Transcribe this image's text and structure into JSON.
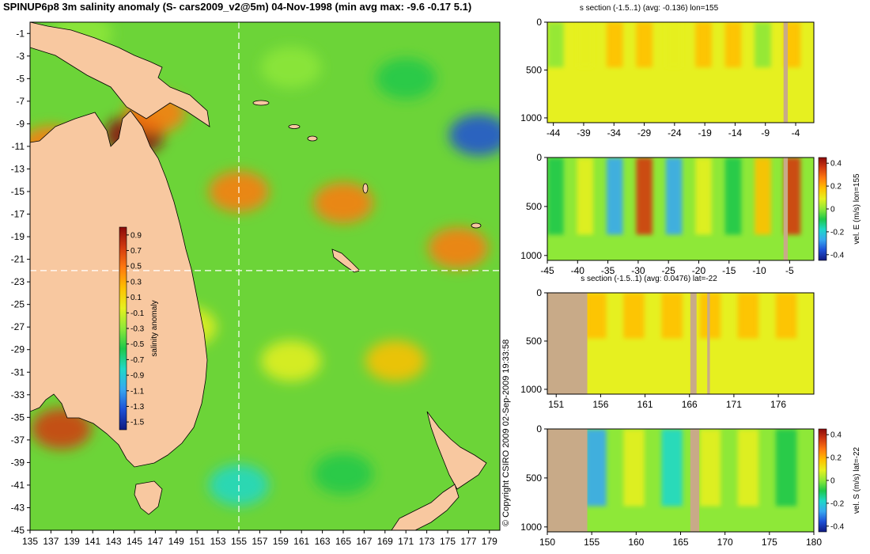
{
  "main_title": "SPINUP6p8 3m salinity anomaly (S- cars2009_v2@5m) 04-Nov-1998 (min avg max: -9.6 -0.17 5.1)",
  "copyright": "© Copyright CSIRO 2009   02-Sep-2009 19:33:58",
  "colors": {
    "land": "#f8c8a0",
    "section_land": "#c8aa88",
    "scale": [
      "#101a80",
      "#1e50d6",
      "#38a8f0",
      "#20d8c8",
      "#1ec84a",
      "#8ee838",
      "#e6f020",
      "#ffc000",
      "#ff7a10",
      "#d23a10",
      "#8a0a0a"
    ]
  },
  "chart_data": [
    {
      "id": "map",
      "type": "heatmap",
      "title": "SPINUP6p8 3m salinity anomaly (S- cars2009_v2@5m) 04-Nov-1998 (min avg max: -9.6 -0.17 5.1)",
      "x_ticks": [
        "135",
        "137",
        "139",
        "141",
        "143",
        "145",
        "147",
        "149",
        "151",
        "153",
        "155",
        "157",
        "159",
        "161",
        "163",
        "165",
        "167",
        "169",
        "171",
        "173",
        "175",
        "177",
        "179"
      ],
      "y_ticks": [
        "-1",
        "-3",
        "-5",
        "-7",
        "-9",
        "-11",
        "-13",
        "-15",
        "-17",
        "-19",
        "-21",
        "-23",
        "-25",
        "-27",
        "-29",
        "-31",
        "-33",
        "-35",
        "-37",
        "-39",
        "-41",
        "-43",
        "-45"
      ],
      "xlim": [
        135,
        180
      ],
      "ylim": [
        -45,
        0
      ],
      "crosshair": {
        "lon": 155,
        "lat": -22
      },
      "stats": {
        "min": -9.6,
        "avg": -0.17,
        "max": 5.1
      },
      "colorbar": {
        "label": "salinity anomaly",
        "ticks": [
          "0.9",
          "0.7",
          "0.5",
          "0.3",
          "0.1",
          "-0.1",
          "-0.3",
          "-0.5",
          "-0.7",
          "-0.9",
          "-1.1",
          "-1.3",
          "-1.5"
        ],
        "range": [
          -1.6,
          1.0
        ]
      },
      "features": [
        {
          "lon": 145,
          "lat": -10,
          "value": 1.0
        },
        {
          "lon": 137,
          "lat": -11,
          "value": 0.6
        },
        {
          "lon": 176,
          "lat": -20,
          "value": 0.6
        },
        {
          "lon": 165,
          "lat": -16,
          "value": 0.5
        },
        {
          "lon": 155,
          "lat": -15,
          "value": 0.4
        },
        {
          "lon": 147,
          "lat": -8,
          "value": 0.4
        },
        {
          "lon": 171,
          "lat": -5,
          "value": -0.6
        },
        {
          "lon": 178,
          "lat": -10,
          "value": -1.3
        },
        {
          "lon": 160,
          "lat": -4,
          "value": -0.4
        },
        {
          "lon": 140,
          "lat": -1,
          "value": -0.2
        },
        {
          "lon": 155,
          "lat": -41,
          "value": -0.7
        },
        {
          "lon": 165,
          "lat": -40,
          "value": -0.5
        },
        {
          "lon": 138,
          "lat": -36,
          "value": 0.8
        },
        {
          "lon": 160,
          "lat": -30,
          "value": -0.1
        },
        {
          "lon": 150,
          "lat": -27,
          "value": 0.0
        },
        {
          "lon": 170,
          "lat": -30,
          "value": 0.1
        }
      ]
    },
    {
      "id": "section-salt-lon",
      "type": "heatmap",
      "title": "s section (-1.5..1) (avg: -0.136) lon=155",
      "x_ticks": [
        "-44",
        "-39",
        "-34",
        "-29",
        "-24",
        "-19",
        "-14",
        "-9",
        "-4"
      ],
      "y_ticks": [
        "0",
        "500",
        "1000"
      ],
      "xlim": [
        -45,
        -1
      ],
      "ylim": [
        1050,
        0
      ],
      "land_columns": [
        [
          -6,
          -5.3
        ]
      ],
      "levels": [
        -0.3,
        -0.1,
        0.1,
        0.2,
        -0.1,
        0.1,
        0.2,
        -0.2,
        0.1
      ]
    },
    {
      "id": "section-vel-e",
      "type": "heatmap",
      "title": "",
      "x_ticks": [
        "-45",
        "-40",
        "-35",
        "-30",
        "-25",
        "-20",
        "-15",
        "-10",
        "-5"
      ],
      "y_ticks": [
        "0",
        "500",
        "1000"
      ],
      "xlim": [
        -45,
        -1
      ],
      "ylim": [
        1050,
        0
      ],
      "colorbar": {
        "label": "vel. E (m/s) lon=155",
        "ticks": [
          "0.4",
          "0.2",
          "0",
          "-0.2",
          "-0.4"
        ],
        "range": [
          -0.45,
          0.45
        ]
      },
      "land_columns": [
        [
          -6,
          -5.3
        ]
      ],
      "levels": [
        -0.05,
        0.05,
        -0.3,
        0.4,
        -0.3,
        0.1,
        -0.1,
        0.2,
        0.4
      ]
    },
    {
      "id": "section-salt-lat",
      "type": "heatmap",
      "title": "s section (-1.5..1) (avg: 0.0476) lat=-22",
      "x_ticks": [
        "151",
        "156",
        "161",
        "166",
        "171",
        "176"
      ],
      "y_ticks": [
        "0",
        "500",
        "1000"
      ],
      "xlim": [
        150,
        180
      ],
      "ylim": [
        1050,
        0
      ],
      "land_columns": [
        [
          150,
          154.5
        ],
        [
          166.1,
          166.8
        ],
        [
          168,
          168.3
        ]
      ],
      "levels": [
        0.1,
        0.2,
        0.1,
        0.2,
        0.15,
        0.2,
        0.25
      ]
    },
    {
      "id": "section-vel-s",
      "type": "heatmap",
      "title": "",
      "x_ticks": [
        "150",
        "155",
        "160",
        "165",
        "170",
        "175",
        "180"
      ],
      "y_ticks": [
        "0",
        "500",
        "1000"
      ],
      "xlim": [
        150,
        180
      ],
      "ylim": [
        1050,
        0
      ],
      "colorbar": {
        "label": "vel. S (m/s) lat=-22",
        "ticks": [
          "0.4",
          "0.2",
          "0",
          "-0.2",
          "-0.4"
        ],
        "range": [
          -0.45,
          0.45
        ]
      },
      "land_columns": [
        [
          150,
          154.5
        ],
        [
          166.1,
          167.1
        ]
      ],
      "levels": [
        0.4,
        -0.3,
        0.1,
        -0.2,
        0.05,
        0.1,
        -0.1
      ]
    }
  ]
}
